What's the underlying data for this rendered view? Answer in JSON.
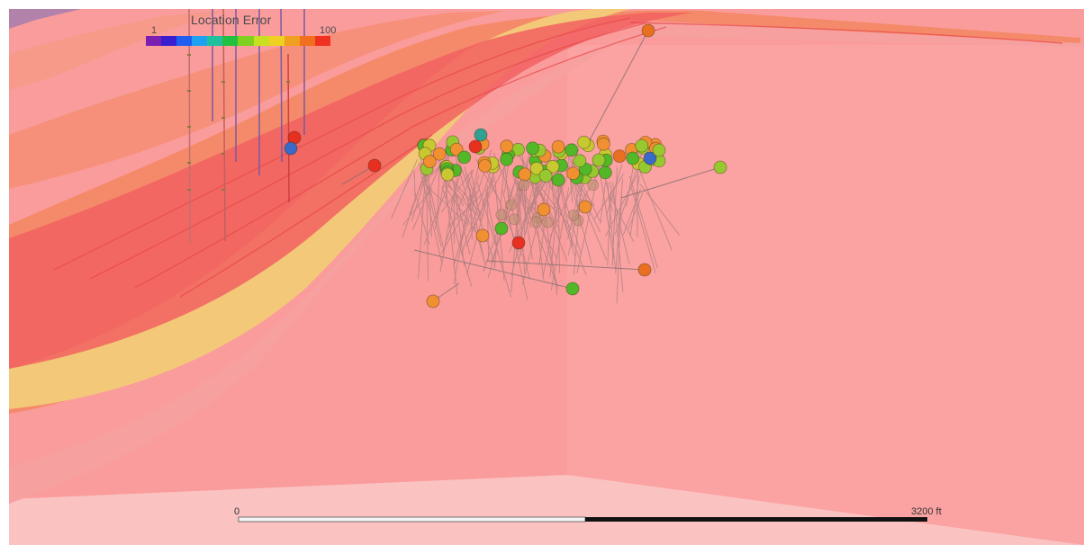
{
  "legend": {
    "title": "Location Error",
    "min_label": "1",
    "max_label": "100",
    "colors": [
      "#7a1fb0",
      "#3a1fd0",
      "#1f5ef0",
      "#1fa0f0",
      "#1fc0a0",
      "#22c040",
      "#80d020",
      "#c8e020",
      "#f0d020",
      "#f0a020",
      "#f07020",
      "#f03020"
    ]
  },
  "scale_bar": {
    "start_label": "0",
    "end_label": "3200 ft"
  },
  "scene_colors": {
    "background": "#ffffff",
    "horizon_layer": "#fa9c9c",
    "lower_slab": "#fbc0c0",
    "hot_band": "#f26060",
    "yellow_band": "#f3c878",
    "link_line": "#7a6a6a"
  }
}
